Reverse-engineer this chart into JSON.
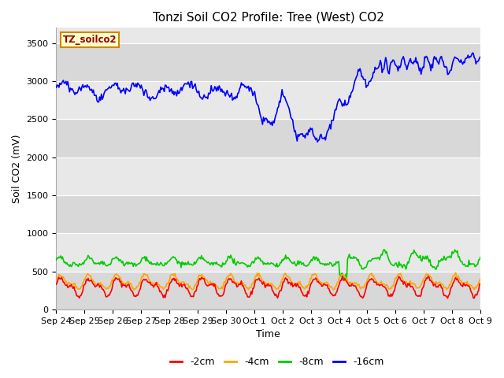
{
  "title": "Tonzi Soil CO2 Profile: Tree (West) CO2",
  "ylabel": "Soil CO2 (mV)",
  "xlabel": "Time",
  "legend_label": "TZ_soilco2",
  "legend_entries": [
    "-2cm",
    "-4cm",
    "-8cm",
    "-16cm"
  ],
  "line_colors": [
    "#ff0000",
    "#ffa500",
    "#00cc00",
    "#0000ff"
  ],
  "fig_bg_color": "#ffffff",
  "plot_bg_color": "#e8e8e8",
  "band_color_light": "#e8e8e8",
  "band_color_dark": "#d8d8d8",
  "ylim": [
    0,
    3700
  ],
  "yticks": [
    0,
    500,
    1000,
    1500,
    2000,
    2500,
    3000,
    3500
  ],
  "xtick_labels": [
    "Sep 24",
    "Sep 25",
    "Sep 26",
    "Sep 27",
    "Sep 28",
    "Sep 29",
    "Sep 30",
    "Oct 1",
    "Oct 2",
    "Oct 3",
    "Oct 4",
    "Oct 5",
    "Oct 6",
    "Oct 7",
    "Oct 8",
    "Oct 9"
  ],
  "n_points": 480,
  "title_fontsize": 11,
  "axis_fontsize": 9,
  "tick_fontsize": 8,
  "legend_label_color": "#990000",
  "legend_box_face": "#ffffcc",
  "legend_box_edge": "#cc8800"
}
